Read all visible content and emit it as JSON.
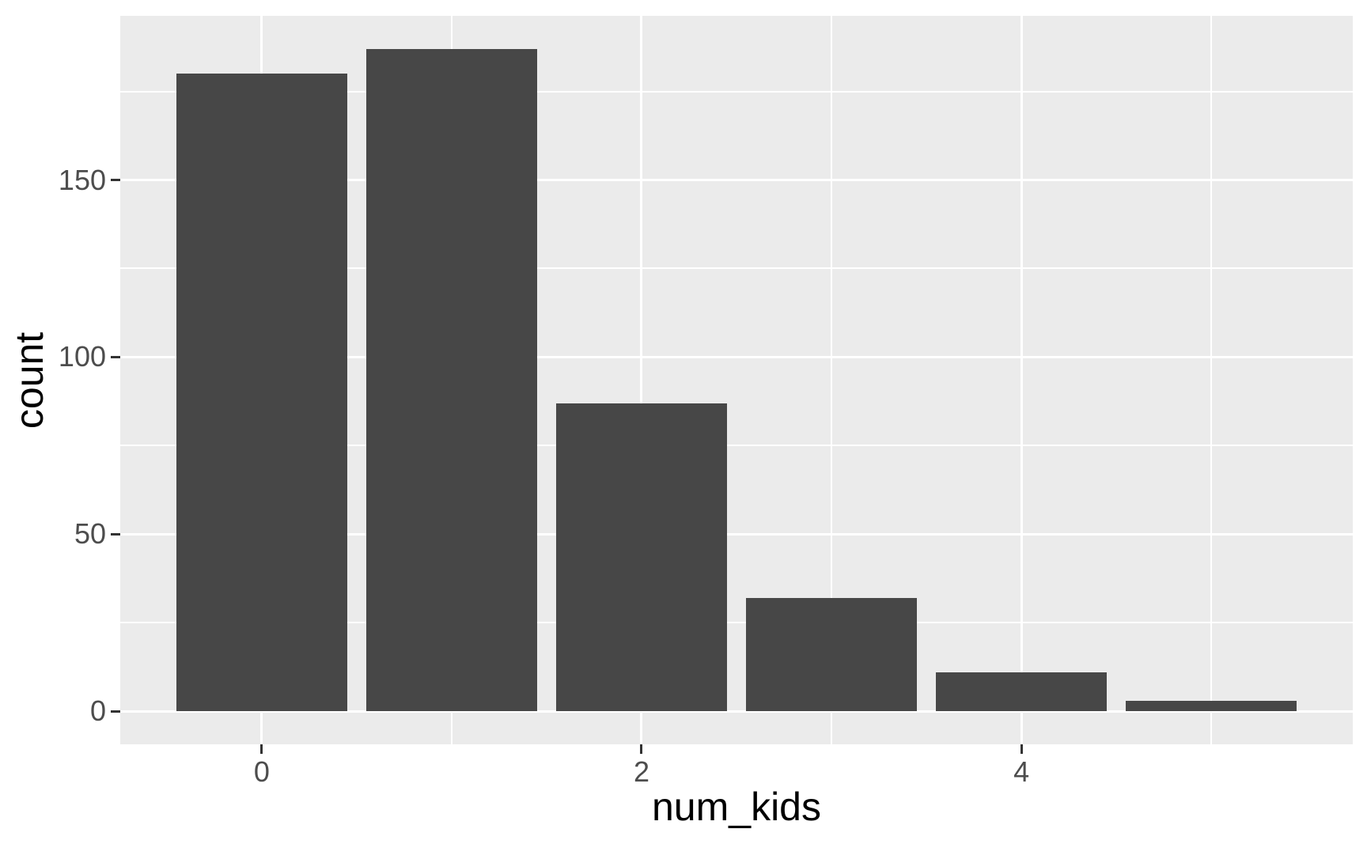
{
  "chart_data": {
    "type": "bar",
    "title": "",
    "xlabel": "num_kids",
    "ylabel": "count",
    "categories": [
      0,
      1,
      2,
      3,
      4,
      5
    ],
    "values": [
      180,
      187,
      87,
      32,
      11,
      3
    ],
    "bar_width_units": 0.9,
    "x_major_ticks": [
      0,
      2,
      4
    ],
    "x_tick_labels": [
      "0",
      "2",
      "4"
    ],
    "x_minor_ticks": [
      1,
      3,
      5
    ],
    "y_major_ticks": [
      0,
      50,
      100,
      150
    ],
    "y_tick_labels": [
      "0",
      "50",
      "100",
      "150"
    ],
    "y_minor_ticks": [
      25,
      75,
      125,
      175
    ],
    "xlim": [
      -0.745,
      5.745
    ],
    "ylim": [
      -9.35,
      196.35
    ],
    "grid": "on",
    "legend": "none",
    "theme": "ggplot2-grey",
    "colors": {
      "bar_fill": "#474747",
      "panel_background": "#EBEBEB",
      "gridline": "#FFFFFF",
      "tick_mark": "#333333",
      "tick_label": "#4D4D4D",
      "axis_title": "#000000",
      "figure_background": "#FFFFFF"
    }
  }
}
